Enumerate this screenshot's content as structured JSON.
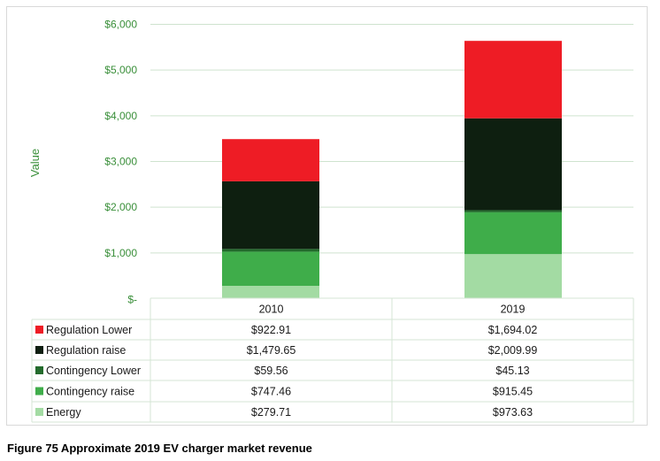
{
  "caption": "Figure 75 Approximate 2019 EV charger market revenue",
  "chart_data": {
    "type": "bar",
    "stacked": true,
    "title": "",
    "ylabel": "Value",
    "xlabel": "",
    "ylim": [
      0,
      6000
    ],
    "yticks": [
      0,
      1000,
      2000,
      3000,
      4000,
      5000,
      6000
    ],
    "ytick_labels": [
      "$-",
      "$1,000",
      "$2,000",
      "$3,000",
      "$4,000",
      "$5,000",
      "$6,000"
    ],
    "categories": [
      "2010",
      "2019"
    ],
    "series": [
      {
        "name": "Energy",
        "color": "#a3dba3",
        "values": [
          279.71,
          973.63
        ],
        "labels": [
          "$279.71",
          "$973.63"
        ]
      },
      {
        "name": "Contingency raise",
        "color": "#3fad4a",
        "values": [
          747.46,
          915.45
        ],
        "labels": [
          "$747.46",
          "$915.45"
        ]
      },
      {
        "name": "Contingency Lower",
        "color": "#236b2c",
        "values": [
          59.56,
          45.13
        ],
        "labels": [
          "$59.56",
          "$45.13"
        ]
      },
      {
        "name": "Regulation raise",
        "color": "#0e1f10",
        "values": [
          1479.65,
          2009.99
        ],
        "labels": [
          "$1,479.65",
          "$2,009.99"
        ]
      },
      {
        "name": "Regulation Lower",
        "color": "#ee1c25",
        "values": [
          922.91,
          1694.02
        ],
        "labels": [
          "$922.91",
          "$1,694.02"
        ]
      }
    ],
    "table_row_order": [
      "Regulation Lower",
      "Regulation raise",
      "Contingency Lower",
      "Contingency raise",
      "Energy"
    ],
    "grid_color": "#cfe3cf",
    "axis_text_color": "#3a8f3a"
  }
}
